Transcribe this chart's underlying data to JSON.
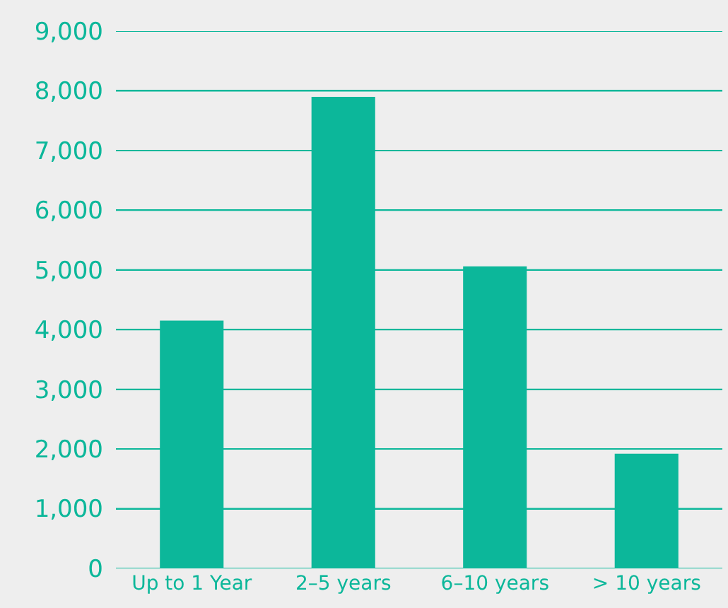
{
  "chart_data": {
    "type": "bar",
    "categories": [
      "Up to 1 Year",
      "2–5 years",
      "6–10 years",
      "> 10 years"
    ],
    "values": [
      4150,
      7900,
      5060,
      1920
    ],
    "color": "#0cb79a",
    "ylim": [
      0,
      9000
    ],
    "yticks": [
      {
        "value": 0,
        "label": "0"
      },
      {
        "value": 1000,
        "label": "1,000"
      },
      {
        "value": 2000,
        "label": "2,000"
      },
      {
        "value": 3000,
        "label": "3,000"
      },
      {
        "value": 4000,
        "label": "4,000"
      },
      {
        "value": 5000,
        "label": "5,000"
      },
      {
        "value": 6000,
        "label": "6,000"
      },
      {
        "value": 7000,
        "label": "7,000"
      },
      {
        "value": 8000,
        "label": "8,000"
      },
      {
        "value": 9000,
        "label": "9,000"
      }
    ],
    "grid": "y"
  }
}
